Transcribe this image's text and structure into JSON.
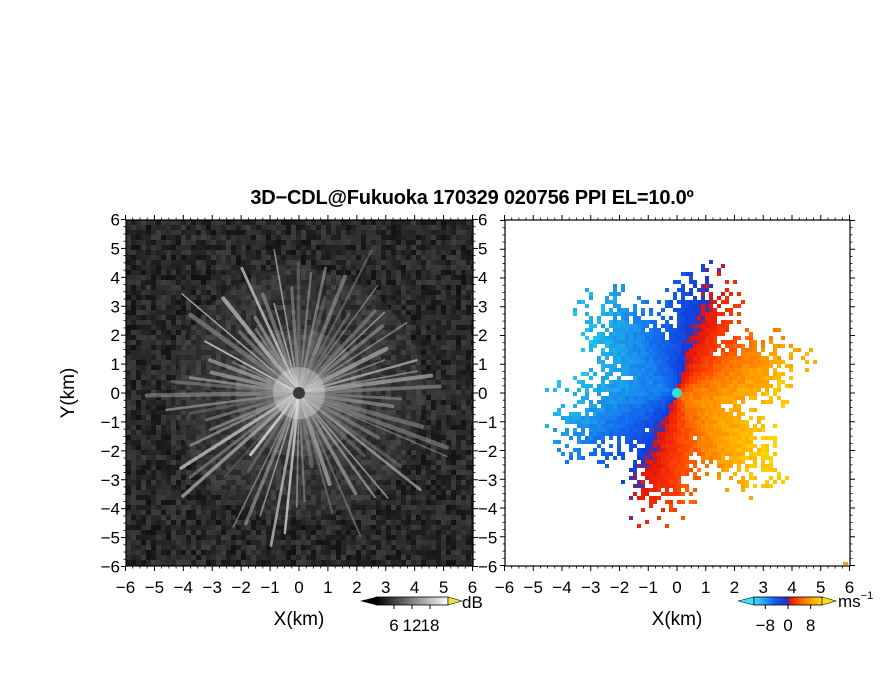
{
  "title": "3D−CDL@Fukuoka 170329 020756 PPI EL=10.0º",
  "chart_data": [
    {
      "type": "heatmap",
      "name": "backscatter",
      "xlabel": "X(km)",
      "ylabel": "Y(km)",
      "xlim": [
        -6,
        6
      ],
      "ylim": [
        -6,
        6
      ],
      "xticks": [
        "−6",
        "−5",
        "−4",
        "−3",
        "−2",
        "−1",
        "0",
        "1",
        "2",
        "3",
        "4",
        "5",
        "6"
      ],
      "yticks": [
        "−6",
        "−5",
        "−4",
        "−3",
        "−2",
        "−1",
        "0",
        "1",
        "2",
        "3",
        "4",
        "5",
        "6"
      ],
      "colorbar": {
        "unit": "dB",
        "ticks": [
          "6",
          "12",
          "18"
        ],
        "range": [
          0,
          24
        ],
        "colormap": "grayscale"
      },
      "description_values": {
        "center_x": 0,
        "center_y": 0,
        "max_range_km": 5
      }
    },
    {
      "type": "heatmap",
      "name": "doppler_velocity",
      "xlabel": "X(km)",
      "ylabel": "",
      "xlim": [
        -6,
        6
      ],
      "ylim": [
        -6,
        6
      ],
      "xticks": [
        "−6",
        "−5",
        "−4",
        "−3",
        "−2",
        "−1",
        "0",
        "1",
        "2",
        "3",
        "4",
        "5",
        "6"
      ],
      "yticks": [
        "−6",
        "−5",
        "−4",
        "−3",
        "−2",
        "−1",
        "0",
        "1",
        "2",
        "3",
        "4",
        "5",
        "6"
      ],
      "colorbar": {
        "unit": "ms",
        "unit_exp": "−1",
        "ticks": [
          "−8",
          "0",
          "8"
        ],
        "range": [
          -12,
          12
        ],
        "colormap": "cyan-blue-red-orange-yellow"
      },
      "description_values": {
        "center_x": 0,
        "center_y": 0,
        "max_range_km": 4.5
      }
    }
  ],
  "colors": {
    "cyan": "#22c8e8",
    "blue": "#1050e0",
    "red": "#ff2a00",
    "orange": "#ff8a00",
    "yellow": "#ffd400"
  }
}
